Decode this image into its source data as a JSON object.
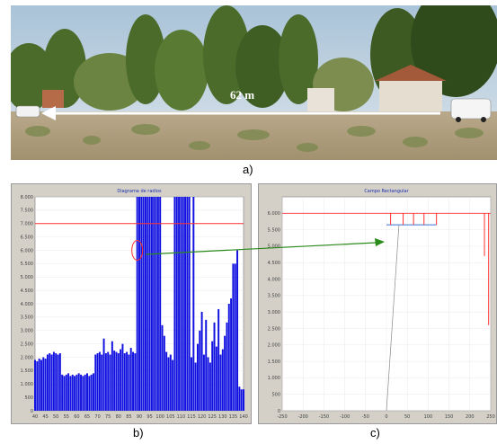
{
  "figure": {
    "label_a": "a)",
    "label_b": "b)",
    "label_c": "c)"
  },
  "photo": {
    "distance_label": "62 m"
  },
  "colors": {
    "bar": "#1010e0",
    "threshold": "#ff3030",
    "arrow": "#2a8a1a",
    "panel_bg": "#d4d0c8",
    "plot_bg": "#ffffff"
  },
  "chart_data": [
    {
      "type": "bar",
      "title": "Diagrama de radios",
      "x": [
        40,
        41,
        42,
        43,
        44,
        45,
        46,
        47,
        48,
        49,
        50,
        51,
        52,
        53,
        54,
        55,
        56,
        57,
        58,
        59,
        60,
        61,
        62,
        63,
        64,
        65,
        66,
        67,
        68,
        69,
        70,
        71,
        72,
        73,
        74,
        75,
        76,
        77,
        78,
        79,
        80,
        81,
        82,
        83,
        84,
        85,
        86,
        87,
        88,
        89,
        90,
        91,
        92,
        93,
        94,
        95,
        96,
        97,
        98,
        99,
        100,
        101,
        102,
        103,
        104,
        105,
        106,
        107,
        108,
        109,
        110,
        111,
        112,
        113,
        114,
        115,
        116,
        117,
        118,
        119,
        120,
        121,
        122,
        123,
        124,
        125,
        126,
        127,
        128,
        129,
        130,
        131,
        132,
        133,
        134,
        135,
        136,
        137,
        138,
        139,
        140
      ],
      "values": [
        1900,
        1850,
        1950,
        1900,
        2000,
        1950,
        2100,
        2150,
        2100,
        2200,
        2150,
        2100,
        2150,
        1350,
        1300,
        1350,
        1400,
        1300,
        1350,
        1300,
        1350,
        1400,
        1350,
        1300,
        1350,
        1400,
        1300,
        1350,
        1400,
        2100,
        2150,
        2200,
        2100,
        2700,
        2150,
        2200,
        2100,
        2600,
        2250,
        2200,
        2150,
        2300,
        2500,
        2150,
        2200,
        2100,
        2350,
        2200,
        2150,
        8000,
        8000,
        8000,
        8000,
        8000,
        8000,
        8000,
        8000,
        8000,
        8000,
        8000,
        8000,
        3200,
        2800,
        2200,
        2000,
        2100,
        1900,
        8000,
        8000,
        8000,
        8000,
        8000,
        8000,
        8000,
        8000,
        2000,
        8000,
        1800,
        2500,
        3000,
        3700,
        2100,
        3400,
        2000,
        1800,
        2600,
        3300,
        2400,
        3800,
        2100,
        2300,
        2800,
        3300,
        4000,
        4200,
        5500,
        5500,
        6000,
        900,
        800,
        800
      ],
      "threshold": 7000,
      "ylim": [
        0,
        8000
      ],
      "xlim": [
        40,
        140
      ],
      "yticks": [
        0,
        500,
        1000,
        1500,
        2000,
        2500,
        3000,
        3500,
        4000,
        4500,
        5000,
        5500,
        6000,
        6500,
        7000,
        7500,
        8000
      ],
      "ytick_labels": [
        "0",
        "500",
        "1.000",
        "1.500",
        "2.000",
        "2.500",
        "3.000",
        "3.500",
        "4.000",
        "4.500",
        "5.000",
        "5.500",
        "6.000",
        "6.500",
        "7.000",
        "7.500",
        "8.000"
      ],
      "xticks": [
        40,
        45,
        50,
        55,
        60,
        65,
        70,
        75,
        80,
        85,
        90,
        95,
        100,
        105,
        110,
        115,
        120,
        125,
        130,
        135,
        140
      ],
      "xtick_labels": [
        "40",
        "45",
        "50",
        "55",
        "60",
        "65",
        "70",
        "75",
        "80",
        "85",
        "90",
        "95",
        "100",
        "105",
        "110",
        "115",
        "120",
        "125",
        "130",
        "135",
        "140"
      ],
      "highlight": {
        "x": 89,
        "y": 6000
      }
    },
    {
      "type": "line",
      "title": "Campo Rectangular",
      "xlim": [
        -250,
        250
      ],
      "ylim": [
        0,
        6500
      ],
      "threshold": 6000,
      "rect_line": {
        "x1": 0,
        "x2": 120,
        "y": 5650
      },
      "spikes": [
        {
          "x": 10,
          "y1": 5650,
          "y2": 6000
        },
        {
          "x": 40,
          "y1": 5650,
          "y2": 6000
        },
        {
          "x": 65,
          "y1": 5650,
          "y2": 6000
        },
        {
          "x": 90,
          "y1": 5650,
          "y2": 6000
        },
        {
          "x": 120,
          "y1": 5650,
          "y2": 6000
        }
      ],
      "right_drops": [
        {
          "x": 235,
          "y1": 6000,
          "y2": 4700
        },
        {
          "x": 245,
          "y1": 6000,
          "y2": 2600
        }
      ],
      "sensor_line": {
        "x1": 0,
        "y1": 0,
        "x2": 30,
        "y2": 5650
      },
      "yticks": [
        0,
        500,
        1000,
        1500,
        2000,
        2500,
        3000,
        3500,
        4000,
        4500,
        5000,
        5500,
        6000
      ],
      "ytick_labels": [
        "0",
        "500",
        "1.000",
        "1.500",
        "2.000",
        "2.500",
        "3.000",
        "3.500",
        "4.000",
        "4.500",
        "5.000",
        "5.500",
        "6.000"
      ],
      "xticks": [
        -250,
        -200,
        -150,
        -100,
        -50,
        0,
        50,
        100,
        150,
        200,
        250
      ],
      "xtick_labels": [
        "-250",
        "-200",
        "-150",
        "-100",
        "-50",
        "0",
        "50",
        "100",
        "150",
        "200",
        "250"
      ]
    }
  ]
}
